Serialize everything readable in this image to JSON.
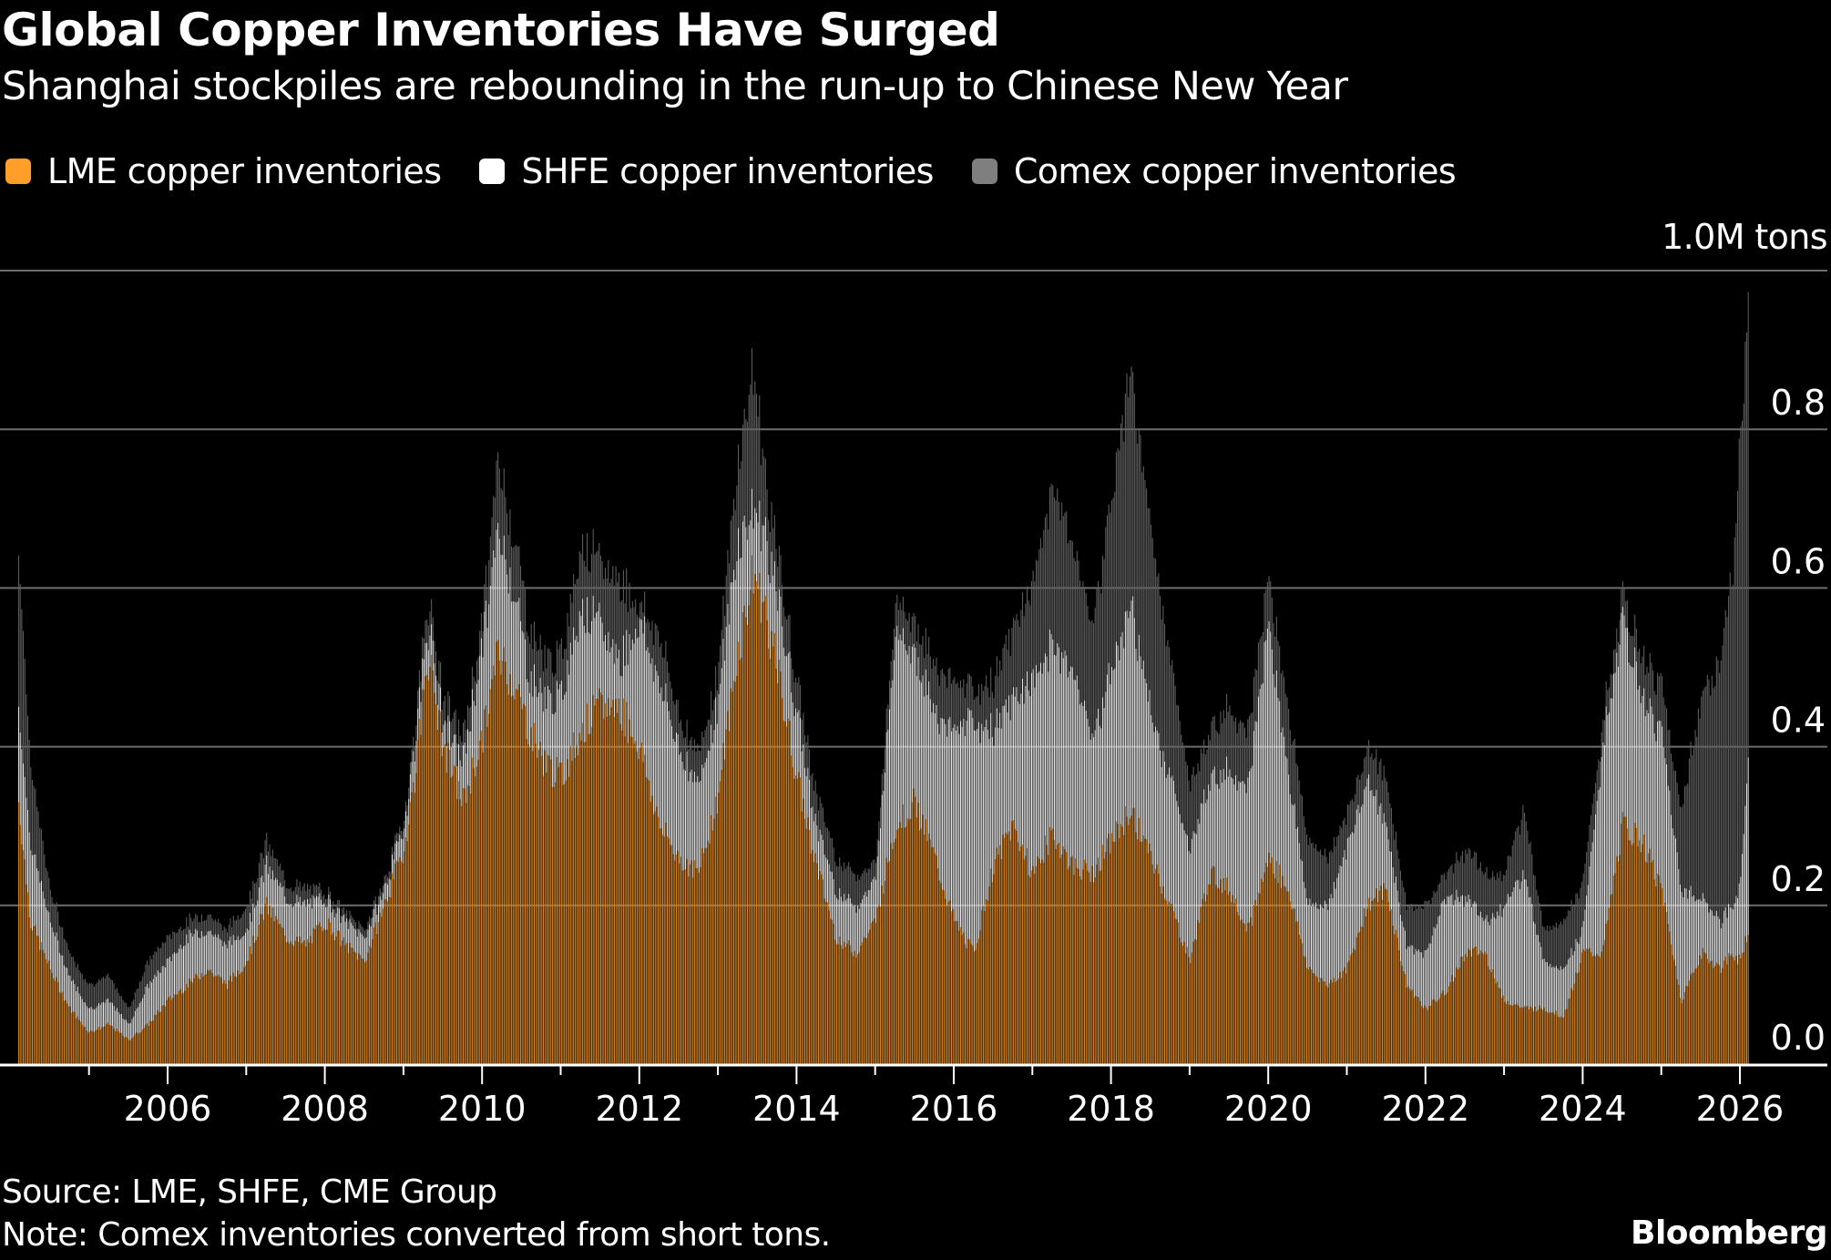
{
  "header": {
    "title": "Global Copper Inventories Have Surged",
    "subtitle": "Shanghai stockpiles are rebounding in the run-up to Chinese New Year"
  },
  "legend": [
    {
      "label": "LME copper inventories",
      "color": "#FF9F2A"
    },
    {
      "label": "SHFE copper inventories",
      "color": "#FFFFFF"
    },
    {
      "label": "Comex copper inventories",
      "color": "#7F7F7F"
    }
  ],
  "footer": {
    "source": "Source: LME, SHFE, CME Group",
    "note": "Note: Comex inventories converted from short tons.",
    "brand": "Bloomberg"
  },
  "colors": {
    "background": "#000000",
    "lme_bar": "#D7841F",
    "shfe_bar": "#E8E8E8",
    "comex_bar": "#5E5E5E",
    "gridline": "#6E6E6E",
    "axis": "#FFFFFF"
  },
  "chart_data": {
    "type": "bar",
    "stacked": true,
    "title": "Global Copper Inventories Have Surged",
    "subtitle": "Shanghai stockpiles are rebounding in the run-up to Chinese New Year",
    "xlabel": "",
    "ylabel": "Million tons",
    "unit_label": "1.0M tons",
    "xlim": [
      2004.0,
      2026.3
    ],
    "ylim": [
      0,
      1.0
    ],
    "yticks": [
      0.0,
      0.2,
      0.4,
      0.6,
      0.8,
      1.0
    ],
    "ytick_labels": [
      "0.0",
      "0.2",
      "0.4",
      "0.6",
      "0.8",
      "1.0M tons"
    ],
    "xticks_major": [
      2006,
      2008,
      2010,
      2012,
      2014,
      2016,
      2018,
      2020,
      2022,
      2024,
      2026
    ],
    "xtick_labels": [
      "2006",
      "2008",
      "2010",
      "2012",
      "2014",
      "2016",
      "2018",
      "2020",
      "2022",
      "2024",
      "2026"
    ],
    "xticks_minor": [
      2005,
      2007,
      2009,
      2011,
      2013,
      2015,
      2017,
      2019,
      2021,
      2023,
      2025
    ],
    "grid": true,
    "legend_position": "top-left",
    "x": [
      2004.1,
      2004.25,
      2004.5,
      2004.75,
      2005.0,
      2005.25,
      2005.5,
      2005.75,
      2006.0,
      2006.25,
      2006.5,
      2006.75,
      2007.0,
      2007.25,
      2007.5,
      2007.75,
      2008.0,
      2008.25,
      2008.5,
      2008.75,
      2009.0,
      2009.15,
      2009.3,
      2009.5,
      2009.75,
      2010.0,
      2010.2,
      2010.4,
      2010.6,
      2010.8,
      2011.0,
      2011.25,
      2011.5,
      2011.75,
      2012.0,
      2012.25,
      2012.5,
      2012.75,
      2013.0,
      2013.25,
      2013.45,
      2013.6,
      2013.8,
      2014.0,
      2014.25,
      2014.5,
      2014.75,
      2015.0,
      2015.25,
      2015.5,
      2015.75,
      2016.0,
      2016.25,
      2016.5,
      2016.75,
      2017.0,
      2017.25,
      2017.5,
      2017.75,
      2018.0,
      2018.25,
      2018.5,
      2018.75,
      2019.0,
      2019.25,
      2019.5,
      2019.75,
      2020.0,
      2020.25,
      2020.5,
      2020.75,
      2021.0,
      2021.25,
      2021.5,
      2021.75,
      2022.0,
      2022.25,
      2022.5,
      2022.75,
      2023.0,
      2023.25,
      2023.5,
      2023.75,
      2024.0,
      2024.25,
      2024.5,
      2024.75,
      2025.0,
      2025.25,
      2025.5,
      2025.75,
      2025.9,
      2026.0,
      2026.1
    ],
    "series": [
      {
        "name": "LME copper inventories",
        "values": [
          0.33,
          0.18,
          0.12,
          0.07,
          0.04,
          0.05,
          0.03,
          0.05,
          0.08,
          0.1,
          0.12,
          0.1,
          0.13,
          0.2,
          0.16,
          0.15,
          0.18,
          0.15,
          0.13,
          0.2,
          0.27,
          0.37,
          0.52,
          0.4,
          0.33,
          0.41,
          0.52,
          0.48,
          0.42,
          0.38,
          0.36,
          0.42,
          0.45,
          0.45,
          0.4,
          0.3,
          0.26,
          0.24,
          0.34,
          0.52,
          0.62,
          0.57,
          0.47,
          0.36,
          0.25,
          0.16,
          0.14,
          0.18,
          0.3,
          0.33,
          0.26,
          0.18,
          0.14,
          0.25,
          0.3,
          0.24,
          0.29,
          0.25,
          0.24,
          0.28,
          0.32,
          0.26,
          0.2,
          0.13,
          0.24,
          0.22,
          0.17,
          0.26,
          0.22,
          0.12,
          0.1,
          0.12,
          0.2,
          0.22,
          0.1,
          0.07,
          0.09,
          0.14,
          0.14,
          0.08,
          0.07,
          0.07,
          0.06,
          0.14,
          0.14,
          0.3,
          0.28,
          0.22,
          0.08,
          0.14,
          0.12,
          0.14,
          0.13,
          0.17
        ]
      },
      {
        "name": "SHFE copper inventories",
        "values": [
          0.12,
          0.1,
          0.06,
          0.04,
          0.03,
          0.03,
          0.02,
          0.05,
          0.05,
          0.06,
          0.05,
          0.05,
          0.04,
          0.05,
          0.05,
          0.05,
          0.03,
          0.03,
          0.03,
          0.02,
          0.03,
          0.04,
          0.04,
          0.03,
          0.05,
          0.12,
          0.15,
          0.12,
          0.07,
          0.08,
          0.1,
          0.16,
          0.1,
          0.06,
          0.16,
          0.18,
          0.14,
          0.11,
          0.12,
          0.14,
          0.08,
          0.1,
          0.09,
          0.08,
          0.05,
          0.06,
          0.06,
          0.05,
          0.25,
          0.19,
          0.18,
          0.24,
          0.29,
          0.17,
          0.16,
          0.24,
          0.24,
          0.25,
          0.17,
          0.21,
          0.26,
          0.18,
          0.16,
          0.14,
          0.12,
          0.15,
          0.18,
          0.3,
          0.15,
          0.08,
          0.1,
          0.15,
          0.16,
          0.08,
          0.05,
          0.07,
          0.12,
          0.07,
          0.04,
          0.12,
          0.17,
          0.06,
          0.06,
          0.03,
          0.26,
          0.26,
          0.18,
          0.2,
          0.14,
          0.07,
          0.06,
          0.06,
          0.1,
          0.22
        ]
      },
      {
        "name": "Comex copper inventories",
        "values": [
          0.2,
          0.1,
          0.04,
          0.03,
          0.03,
          0.03,
          0.02,
          0.03,
          0.03,
          0.02,
          0.02,
          0.02,
          0.03,
          0.03,
          0.02,
          0.02,
          0.01,
          0.01,
          0.01,
          0.01,
          0.01,
          0.02,
          0.03,
          0.03,
          0.03,
          0.03,
          0.09,
          0.07,
          0.06,
          0.05,
          0.05,
          0.08,
          0.08,
          0.1,
          0.02,
          0.06,
          0.04,
          0.04,
          0.04,
          0.1,
          0.18,
          0.07,
          0.05,
          0.04,
          0.04,
          0.04,
          0.04,
          0.02,
          0.04,
          0.04,
          0.06,
          0.06,
          0.04,
          0.06,
          0.09,
          0.12,
          0.2,
          0.16,
          0.14,
          0.22,
          0.3,
          0.23,
          0.15,
          0.08,
          0.06,
          0.08,
          0.07,
          0.06,
          0.08,
          0.08,
          0.06,
          0.04,
          0.04,
          0.06,
          0.05,
          0.06,
          0.03,
          0.06,
          0.06,
          0.04,
          0.08,
          0.04,
          0.06,
          0.06,
          0.03,
          0.03,
          0.05,
          0.06,
          0.1,
          0.25,
          0.32,
          0.42,
          0.55,
          0.56
        ]
      }
    ]
  }
}
